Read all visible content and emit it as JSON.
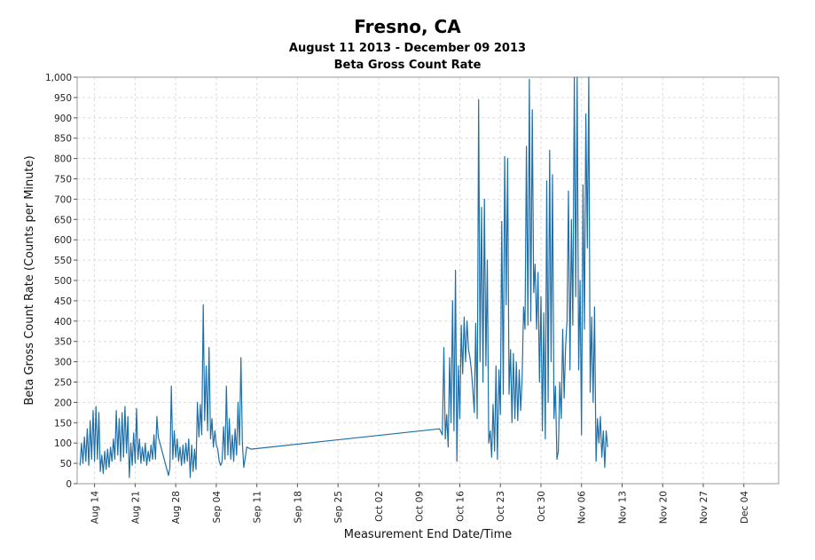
{
  "header": {
    "title": "Fresno, CA",
    "subtitle": "August 11 2013 - December 09 2013",
    "chart_title": "Beta Gross Count Rate"
  },
  "colors": {
    "line": "#1f6fa8",
    "grid": "#dcdcdc",
    "frame": "#9a9a9a"
  },
  "chart_data": {
    "type": "line",
    "title": "Fresno, CA",
    "subtitle": "August 11 2013 - December 09 2013",
    "chart_title": "Beta Gross Count Rate",
    "xlabel": "Measurement End Date/Time",
    "ylabel": "Beta Gross Count Rate (Counts per Minute)",
    "ylim": [
      0,
      1000
    ],
    "xlim": [
      "2013-08-11",
      "2013-12-10"
    ],
    "grid": true,
    "yticks": [
      0,
      50,
      100,
      150,
      200,
      250,
      300,
      350,
      400,
      450,
      500,
      550,
      600,
      650,
      700,
      750,
      800,
      850,
      900,
      950,
      1000
    ],
    "ytick_labels": [
      "0",
      "50",
      "100",
      "150",
      "200",
      "250",
      "300",
      "350",
      "400",
      "450",
      "500",
      "550",
      "600",
      "650",
      "700",
      "750",
      "800",
      "850",
      "900",
      "950",
      "1,000"
    ],
    "xticks": [
      {
        "date": "2013-08-14",
        "label": "Aug 14"
      },
      {
        "date": "2013-08-21",
        "label": "Aug 21"
      },
      {
        "date": "2013-08-28",
        "label": "Aug 28"
      },
      {
        "date": "2013-09-04",
        "label": "Sep 04"
      },
      {
        "date": "2013-09-11",
        "label": "Sep 11"
      },
      {
        "date": "2013-09-18",
        "label": "Sep 18"
      },
      {
        "date": "2013-09-25",
        "label": "Sep 25"
      },
      {
        "date": "2013-10-02",
        "label": "Oct 02"
      },
      {
        "date": "2013-10-09",
        "label": "Oct 09"
      },
      {
        "date": "2013-10-16",
        "label": "Oct 16"
      },
      {
        "date": "2013-10-23",
        "label": "Oct 23"
      },
      {
        "date": "2013-10-30",
        "label": "Oct 30"
      },
      {
        "date": "2013-11-06",
        "label": "Nov 06"
      },
      {
        "date": "2013-11-13",
        "label": "Nov 13"
      },
      {
        "date": "2013-11-20",
        "label": "Nov 20"
      },
      {
        "date": "2013-11-27",
        "label": "Nov 27"
      },
      {
        "date": "2013-12-04",
        "label": "Dec 04"
      }
    ],
    "series": [
      {
        "color": "#1f6fa8",
        "points": [
          [
            "2013-08-11 12:00",
            45
          ],
          [
            "2013-08-11 18:00",
            100
          ],
          [
            "2013-08-12 00:00",
            50
          ],
          [
            "2013-08-12 06:00",
            115
          ],
          [
            "2013-08-12 12:00",
            55
          ],
          [
            "2013-08-12 18:00",
            135
          ],
          [
            "2013-08-13 00:00",
            45
          ],
          [
            "2013-08-13 06:00",
            155
          ],
          [
            "2013-08-13 12:00",
            60
          ],
          [
            "2013-08-13 18:00",
            180
          ],
          [
            "2013-08-14 00:00",
            55
          ],
          [
            "2013-08-14 06:00",
            190
          ],
          [
            "2013-08-14 12:00",
            60
          ],
          [
            "2013-08-14 18:00",
            175
          ],
          [
            "2013-08-15 00:00",
            30
          ],
          [
            "2013-08-15 06:00",
            70
          ],
          [
            "2013-08-15 12:00",
            25
          ],
          [
            "2013-08-15 18:00",
            80
          ],
          [
            "2013-08-16 00:00",
            35
          ],
          [
            "2013-08-16 06:00",
            85
          ],
          [
            "2013-08-16 12:00",
            40
          ],
          [
            "2013-08-16 18:00",
            90
          ],
          [
            "2013-08-17 00:00",
            55
          ],
          [
            "2013-08-17 06:00",
            110
          ],
          [
            "2013-08-17 12:00",
            60
          ],
          [
            "2013-08-17 18:00",
            180
          ],
          [
            "2013-08-18 00:00",
            70
          ],
          [
            "2013-08-18 06:00",
            160
          ],
          [
            "2013-08-18 12:00",
            55
          ],
          [
            "2013-08-18 18:00",
            175
          ],
          [
            "2013-08-19 00:00",
            65
          ],
          [
            "2013-08-19 06:00",
            190
          ],
          [
            "2013-08-19 12:00",
            75
          ],
          [
            "2013-08-19 18:00",
            165
          ],
          [
            "2013-08-20 00:00",
            15
          ],
          [
            "2013-08-20 06:00",
            100
          ],
          [
            "2013-08-20 12:00",
            45
          ],
          [
            "2013-08-20 18:00",
            125
          ],
          [
            "2013-08-21 00:00",
            50
          ],
          [
            "2013-08-21 06:00",
            185
          ],
          [
            "2013-08-21 12:00",
            60
          ],
          [
            "2013-08-21 18:00",
            110
          ],
          [
            "2013-08-22 00:00",
            50
          ],
          [
            "2013-08-22 06:00",
            90
          ],
          [
            "2013-08-22 12:00",
            55
          ],
          [
            "2013-08-22 18:00",
            100
          ],
          [
            "2013-08-23 00:00",
            45
          ],
          [
            "2013-08-23 06:00",
            80
          ],
          [
            "2013-08-23 12:00",
            55
          ],
          [
            "2013-08-23 18:00",
            95
          ],
          [
            "2013-08-24 00:00",
            60
          ],
          [
            "2013-08-24 06:00",
            120
          ],
          [
            "2013-08-24 12:00",
            60
          ],
          [
            "2013-08-24 18:00",
            165
          ],
          [
            "2013-08-25 00:00",
            115
          ],
          [
            "2013-08-26 18:00",
            20
          ],
          [
            "2013-08-27 00:00",
            40
          ],
          [
            "2013-08-27 06:00",
            240
          ],
          [
            "2013-08-27 12:00",
            60
          ],
          [
            "2013-08-27 18:00",
            130
          ],
          [
            "2013-08-28 00:00",
            65
          ],
          [
            "2013-08-28 06:00",
            110
          ],
          [
            "2013-08-28 12:00",
            55
          ],
          [
            "2013-08-28 18:00",
            90
          ],
          [
            "2013-08-29 00:00",
            45
          ],
          [
            "2013-08-29 06:00",
            95
          ],
          [
            "2013-08-29 12:00",
            50
          ],
          [
            "2013-08-29 18:00",
            100
          ],
          [
            "2013-08-30 00:00",
            55
          ],
          [
            "2013-08-30 06:00",
            110
          ],
          [
            "2013-08-30 12:00",
            15
          ],
          [
            "2013-08-30 18:00",
            95
          ],
          [
            "2013-08-31 00:00",
            30
          ],
          [
            "2013-08-31 06:00",
            85
          ],
          [
            "2013-08-31 12:00",
            35
          ],
          [
            "2013-08-31 18:00",
            200
          ],
          [
            "2013-09-01 00:00",
            115
          ],
          [
            "2013-09-01 06:00",
            195
          ],
          [
            "2013-09-01 12:00",
            120
          ],
          [
            "2013-09-01 18:00",
            440
          ],
          [
            "2013-09-02 00:00",
            155
          ],
          [
            "2013-09-02 06:00",
            290
          ],
          [
            "2013-09-02 12:00",
            130
          ],
          [
            "2013-09-02 18:00",
            335
          ],
          [
            "2013-09-03 00:00",
            110
          ],
          [
            "2013-09-03 06:00",
            160
          ],
          [
            "2013-09-03 12:00",
            90
          ],
          [
            "2013-09-03 18:00",
            130
          ],
          [
            "2013-09-04 00:00",
            95
          ],
          [
            "2013-09-04 06:00",
            85
          ],
          [
            "2013-09-04 12:00",
            55
          ],
          [
            "2013-09-04 18:00",
            45
          ],
          [
            "2013-09-05 00:00",
            55
          ],
          [
            "2013-09-05 06:00",
            140
          ],
          [
            "2013-09-05 12:00",
            60
          ],
          [
            "2013-09-05 18:00",
            240
          ],
          [
            "2013-09-06 00:00",
            70
          ],
          [
            "2013-09-06 06:00",
            160
          ],
          [
            "2013-09-06 12:00",
            60
          ],
          [
            "2013-09-06 18:00",
            120
          ],
          [
            "2013-09-07 00:00",
            55
          ],
          [
            "2013-09-07 06:00",
            135
          ],
          [
            "2013-09-07 12:00",
            70
          ],
          [
            "2013-09-07 18:00",
            200
          ],
          [
            "2013-09-08 00:00",
            95
          ],
          [
            "2013-09-08 06:00",
            310
          ],
          [
            "2013-09-08 12:00",
            100
          ],
          [
            "2013-09-08 18:00",
            40
          ],
          [
            "2013-09-09 00:00",
            65
          ],
          [
            "2013-09-09 06:00",
            90
          ],
          [
            "2013-09-10 00:00",
            85
          ],
          [
            "2013-10-12 12:00",
            135
          ],
          [
            "2013-10-13 00:00",
            120
          ],
          [
            "2013-10-13 06:00",
            335
          ],
          [
            "2013-10-13 12:00",
            110
          ],
          [
            "2013-10-13 18:00",
            170
          ],
          [
            "2013-10-14 00:00",
            90
          ],
          [
            "2013-10-14 06:00",
            310
          ],
          [
            "2013-10-14 12:00",
            150
          ],
          [
            "2013-10-14 18:00",
            450
          ],
          [
            "2013-10-15 00:00",
            130
          ],
          [
            "2013-10-15 06:00",
            525
          ],
          [
            "2013-10-15 12:00",
            55
          ],
          [
            "2013-10-15 18:00",
            290
          ],
          [
            "2013-10-16 00:00",
            160
          ],
          [
            "2013-10-16 06:00",
            390
          ],
          [
            "2013-10-16 12:00",
            270
          ],
          [
            "2013-10-16 18:00",
            410
          ],
          [
            "2013-10-17 00:00",
            300
          ],
          [
            "2013-10-17 06:00",
            400
          ],
          [
            "2013-10-17 12:00",
            330
          ],
          [
            "2013-10-17 18:00",
            310
          ],
          [
            "2013-10-18 00:00",
            280
          ],
          [
            "2013-10-18 06:00",
            230
          ],
          [
            "2013-10-18 12:00",
            175
          ],
          [
            "2013-10-18 18:00",
            395
          ],
          [
            "2013-10-19 00:00",
            160
          ],
          [
            "2013-10-19 06:00",
            945
          ],
          [
            "2013-10-19 12:00",
            300
          ],
          [
            "2013-10-19 18:00",
            680
          ],
          [
            "2013-10-20 00:00",
            250
          ],
          [
            "2013-10-20 06:00",
            700
          ],
          [
            "2013-10-20 12:00",
            290
          ],
          [
            "2013-10-20 18:00",
            550
          ],
          [
            "2013-10-21 00:00",
            100
          ],
          [
            "2013-10-21 06:00",
            130
          ],
          [
            "2013-10-21 12:00",
            65
          ],
          [
            "2013-10-21 18:00",
            195
          ],
          [
            "2013-10-22 00:00",
            80
          ],
          [
            "2013-10-22 06:00",
            290
          ],
          [
            "2013-10-22 12:00",
            60
          ],
          [
            "2013-10-22 18:00",
            280
          ],
          [
            "2013-10-23 00:00",
            170
          ],
          [
            "2013-10-23 06:00",
            645
          ],
          [
            "2013-10-23 12:00",
            220
          ],
          [
            "2013-10-23 18:00",
            805
          ],
          [
            "2013-10-24 00:00",
            440
          ],
          [
            "2013-10-24 06:00",
            800
          ],
          [
            "2013-10-24 12:00",
            220
          ],
          [
            "2013-10-24 18:00",
            330
          ],
          [
            "2013-10-25 00:00",
            150
          ],
          [
            "2013-10-25 06:00",
            320
          ],
          [
            "2013-10-25 12:00",
            160
          ],
          [
            "2013-10-25 18:00",
            300
          ],
          [
            "2013-10-26 00:00",
            155
          ],
          [
            "2013-10-26 06:00",
            280
          ],
          [
            "2013-10-26 12:00",
            180
          ],
          [
            "2013-10-26 18:00",
            255
          ],
          [
            "2013-10-27 00:00",
            435
          ],
          [
            "2013-10-27 06:00",
            380
          ],
          [
            "2013-10-27 12:00",
            830
          ],
          [
            "2013-10-27 18:00",
            390
          ],
          [
            "2013-10-28 00:00",
            995
          ],
          [
            "2013-10-28 06:00",
            400
          ],
          [
            "2013-10-28 12:00",
            920
          ],
          [
            "2013-10-28 18:00",
            470
          ],
          [
            "2013-10-29 00:00",
            540
          ],
          [
            "2013-10-29 06:00",
            380
          ],
          [
            "2013-10-29 12:00",
            520
          ],
          [
            "2013-10-29 18:00",
            250
          ],
          [
            "2013-10-30 00:00",
            460
          ],
          [
            "2013-10-30 06:00",
            130
          ],
          [
            "2013-10-30 12:00",
            420
          ],
          [
            "2013-10-30 18:00",
            110
          ],
          [
            "2013-10-31 00:00",
            745
          ],
          [
            "2013-10-31 06:00",
            200
          ],
          [
            "2013-10-31 12:00",
            820
          ],
          [
            "2013-10-31 18:00",
            300
          ],
          [
            "2013-11-01 00:00",
            760
          ],
          [
            "2013-11-01 06:00",
            160
          ],
          [
            "2013-11-01 12:00",
            240
          ],
          [
            "2013-11-01 18:00",
            60
          ],
          [
            "2013-11-02 00:00",
            80
          ],
          [
            "2013-11-02 06:00",
            250
          ],
          [
            "2013-11-02 12:00",
            160
          ],
          [
            "2013-11-02 18:00",
            380
          ],
          [
            "2013-11-03 00:00",
            210
          ],
          [
            "2013-11-03 06:00",
            340
          ],
          [
            "2013-11-03 12:00",
            400
          ],
          [
            "2013-11-03 18:00",
            720
          ],
          [
            "2013-11-04 00:00",
            280
          ],
          [
            "2013-11-04 06:00",
            650
          ],
          [
            "2013-11-04 12:00",
            390
          ],
          [
            "2013-11-04 18:00",
            1000
          ],
          [
            "2013-11-05 00:00",
            460
          ],
          [
            "2013-11-05 06:00",
            1000
          ],
          [
            "2013-11-05 12:00",
            280
          ],
          [
            "2013-11-05 18:00",
            500
          ],
          [
            "2013-11-06 00:00",
            120
          ],
          [
            "2013-11-06 06:00",
            735
          ],
          [
            "2013-11-06 12:00",
            380
          ],
          [
            "2013-11-06 18:00",
            910
          ],
          [
            "2013-11-07 00:00",
            580
          ],
          [
            "2013-11-07 06:00",
            1000
          ],
          [
            "2013-11-07 12:00",
            225
          ],
          [
            "2013-11-07 18:00",
            410
          ],
          [
            "2013-11-08 00:00",
            200
          ],
          [
            "2013-11-08 06:00",
            435
          ],
          [
            "2013-11-08 12:00",
            55
          ],
          [
            "2013-11-08 18:00",
            160
          ],
          [
            "2013-11-09 00:00",
            100
          ],
          [
            "2013-11-09 06:00",
            165
          ],
          [
            "2013-11-09 12:00",
            65
          ],
          [
            "2013-11-09 18:00",
            130
          ],
          [
            "2013-11-10 00:00",
            40
          ],
          [
            "2013-11-10 06:00",
            130
          ],
          [
            "2013-11-10 12:00",
            90
          ]
        ]
      }
    ]
  },
  "render": {
    "time_origin": "2013-08-11 00:00",
    "day_scale": 1.0
  }
}
